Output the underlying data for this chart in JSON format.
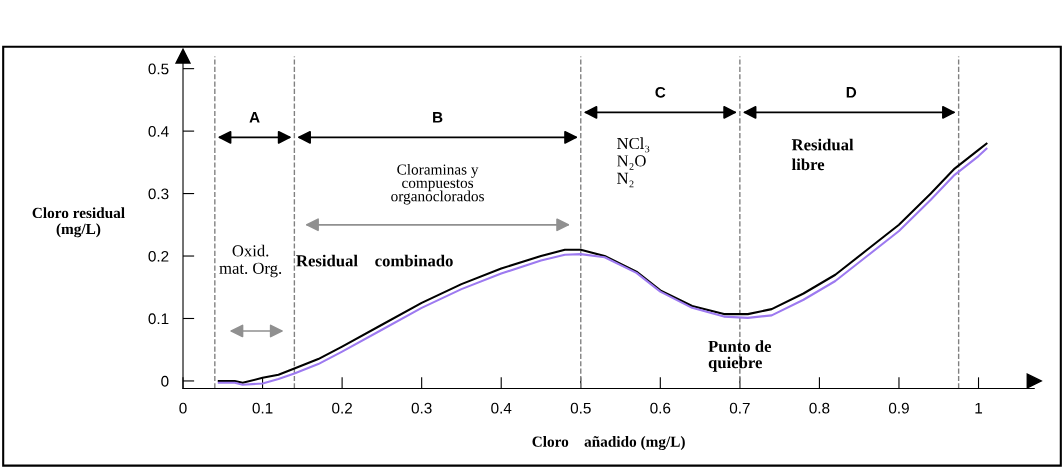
{
  "chart_data": {
    "type": "line",
    "xlabel": "Cloro    añadido (mg/L)",
    "ylabel": "Cloro residual\n(mg/L)",
    "xlim": [
      0,
      1.07
    ],
    "ylim": [
      -0.012,
      0.52
    ],
    "xticks": [
      0,
      0.1,
      0.2,
      0.3,
      0.4,
      0.5,
      0.6,
      0.7,
      0.8,
      0.9,
      1
    ],
    "yticks": [
      0,
      0.1,
      0.2,
      0.3,
      0.4,
      0.5
    ],
    "grid": false,
    "marker": "none",
    "line_style": "solid",
    "series": [
      {
        "color": "#000000",
        "x": [
          0.045,
          0.065,
          0.075,
          0.1,
          0.12,
          0.14,
          0.17,
          0.2,
          0.25,
          0.3,
          0.35,
          0.4,
          0.45,
          0.48,
          0.5,
          0.53,
          0.57,
          0.6,
          0.64,
          0.68,
          0.71,
          0.74,
          0.78,
          0.82,
          0.86,
          0.9,
          0.94,
          0.97,
          1.0,
          1.01
        ],
        "values": [
          0.0,
          0.0,
          -0.003,
          0.005,
          0.01,
          0.02,
          0.035,
          0.055,
          0.09,
          0.125,
          0.155,
          0.18,
          0.2,
          0.21,
          0.21,
          0.2,
          0.175,
          0.145,
          0.12,
          0.107,
          0.107,
          0.115,
          0.14,
          0.17,
          0.21,
          0.25,
          0.3,
          0.34,
          0.37,
          0.38
        ]
      },
      {
        "color": "#9d7af0",
        "x": [
          0.045,
          0.065,
          0.075,
          0.1,
          0.12,
          0.14,
          0.17,
          0.2,
          0.25,
          0.3,
          0.35,
          0.4,
          0.45,
          0.48,
          0.5,
          0.53,
          0.57,
          0.6,
          0.64,
          0.68,
          0.71,
          0.74,
          0.78,
          0.82,
          0.86,
          0.9,
          0.94,
          0.97,
          1.0,
          1.01
        ],
        "values": [
          -0.003,
          -0.003,
          -0.006,
          -0.004,
          0.003,
          0.012,
          0.027,
          0.047,
          0.082,
          0.117,
          0.147,
          0.172,
          0.193,
          0.202,
          0.203,
          0.198,
          0.173,
          0.143,
          0.117,
          0.103,
          0.101,
          0.105,
          0.13,
          0.16,
          0.2,
          0.24,
          0.29,
          0.33,
          0.36,
          0.372
        ]
      }
    ],
    "ref_lines": [
      {
        "axis": "x",
        "value": 0.04,
        "color": "#808080",
        "line_style": "dashed"
      },
      {
        "axis": "x",
        "value": 0.14,
        "color": "#808080",
        "line_style": "dashed"
      },
      {
        "axis": "x",
        "value": 0.5,
        "color": "#808080",
        "line_style": "dashed"
      },
      {
        "axis": "x",
        "value": 0.7,
        "color": "#808080",
        "line_style": "dashed"
      },
      {
        "axis": "x",
        "value": 0.975,
        "color": "#808080",
        "line_style": "dashed"
      }
    ],
    "annotations": [
      "A",
      "B",
      "C",
      "D",
      "Cloraminas y\ncompuestos\norganoclorados",
      "NCl₃\nN₂O\nN₂",
      "Residual\nlibre",
      "Oxid.\nmat. Org.",
      "Residual    combinado",
      "Punto de\nquiebre"
    ]
  }
}
